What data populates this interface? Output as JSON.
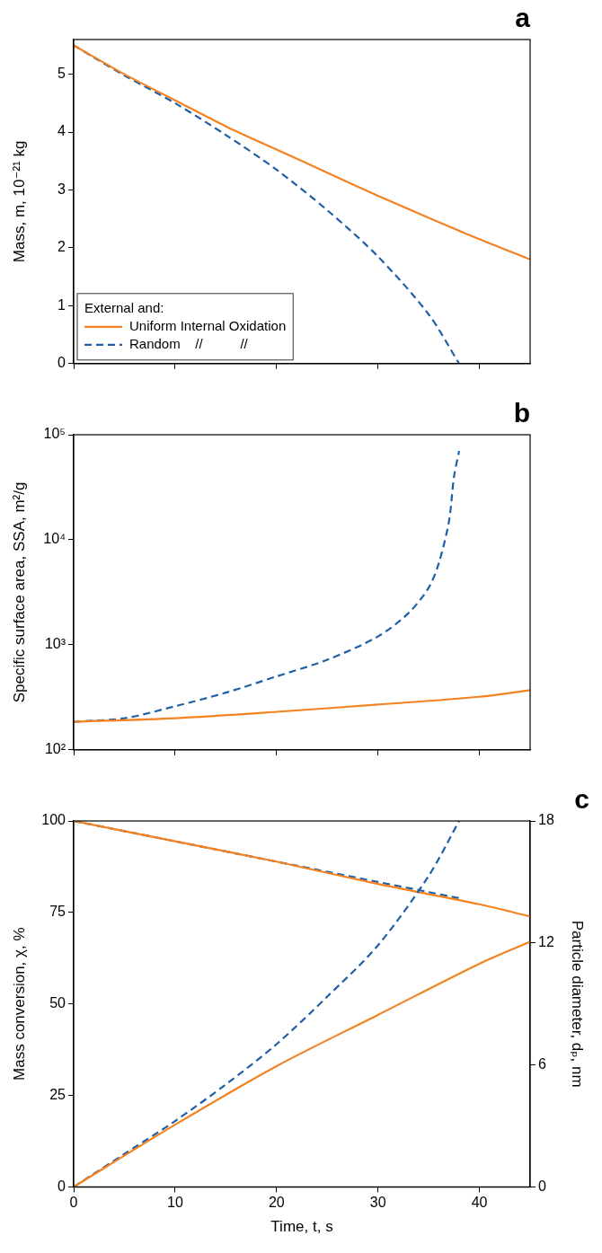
{
  "chart_data": [
    {
      "type": "line",
      "title": "a",
      "ylabel": "Mass, m, 10⁻²¹ kg",
      "xlim": [
        0,
        45
      ],
      "xticks": [
        0,
        10,
        20,
        30,
        40
      ],
      "ylim": [
        0,
        5.6
      ],
      "yticks": [
        0,
        1,
        2,
        3,
        4,
        5
      ],
      "tick_labels": "y",
      "grid": false,
      "legend": "lower left",
      "legend_title": "External and:",
      "series": [
        {
          "name": "Uniform Internal Oxidation",
          "color": "#f58220",
          "line_style": "solid",
          "x": [
            0,
            5,
            10,
            15,
            20,
            25,
            30,
            35,
            40,
            45
          ],
          "values": [
            5.5,
            5.0,
            4.55,
            4.1,
            3.7,
            3.3,
            2.9,
            2.52,
            2.15,
            1.8
          ]
        },
        {
          "name": "Random    //          //",
          "color": "#1f5fa6",
          "line_style": "dashed",
          "x": [
            0,
            5,
            10,
            15,
            20,
            25,
            30,
            35,
            38
          ],
          "values": [
            5.5,
            4.98,
            4.5,
            3.95,
            3.35,
            2.65,
            1.85,
            0.85,
            0.0
          ]
        }
      ]
    },
    {
      "type": "line",
      "title": "b",
      "ylabel": "Specific surface area, SSA, m²/g",
      "log": "y",
      "xlim": [
        0,
        45
      ],
      "xticks": [
        0,
        10,
        20,
        30,
        40
      ],
      "ylim": [
        100,
        100000
      ],
      "yticks": [
        {
          "value": 100,
          "label": "10²"
        },
        {
          "value": 1000,
          "label": "10³"
        },
        {
          "value": 10000,
          "label": "10⁴"
        },
        {
          "value": 100000,
          "label": "10⁵"
        }
      ],
      "tick_labels": "y",
      "grid": false,
      "series": [
        {
          "color": "#f58220",
          "line_style": "solid",
          "x": [
            0,
            10,
            20,
            30,
            40,
            45
          ],
          "values": [
            185,
            200,
            230,
            270,
            320,
            370
          ]
        },
        {
          "color": "#1f5fa6",
          "line_style": "dashed",
          "x": [
            0,
            5,
            10,
            15,
            20,
            25,
            30,
            33,
            35,
            36,
            37,
            37.5,
            38
          ],
          "values": [
            185,
            200,
            260,
            350,
            500,
            720,
            1200,
            2000,
            3500,
            6000,
            15000,
            40000,
            70000
          ]
        }
      ]
    },
    {
      "type": "line",
      "title": "c",
      "xlabel": "Time, t, s",
      "ylabel": "Mass conversion, χ, %",
      "y2label": "Particle diameter, dₚ, nm",
      "xlim": [
        0,
        45
      ],
      "xticks": [
        0,
        10,
        20,
        30,
        40
      ],
      "ylim": [
        0,
        100
      ],
      "yticks": [
        0,
        25,
        50,
        75,
        100
      ],
      "y2lim": [
        0,
        18
      ],
      "y2ticks": [
        0,
        6,
        12,
        18
      ],
      "grid": false,
      "series": [
        {
          "color": "#f58220",
          "line_style": "solid",
          "x": [
            0,
            10,
            20,
            30,
            40,
            45
          ],
          "values": [
            0,
            17,
            33,
            47,
            61,
            67
          ]
        },
        {
          "color": "#1f5fa6",
          "line_style": "dashed",
          "x": [
            0,
            5,
            10,
            15,
            20,
            25,
            30,
            35,
            38
          ],
          "values": [
            0,
            9,
            18,
            28,
            39,
            52,
            66,
            85,
            100
          ]
        },
        {
          "color": "#f58220",
          "line_style": "solid",
          "axis": "y2",
          "x": [
            0,
            10,
            20,
            30,
            40,
            45
          ],
          "values": [
            18,
            17,
            16,
            14.9,
            13.9,
            13.3
          ]
        },
        {
          "color": "#1f5fa6",
          "line_style": "dashed",
          "axis": "y2",
          "x": [
            0,
            10,
            20,
            30,
            35,
            38
          ],
          "values": [
            18,
            17,
            16,
            15,
            14.5,
            14.2
          ]
        }
      ]
    }
  ]
}
